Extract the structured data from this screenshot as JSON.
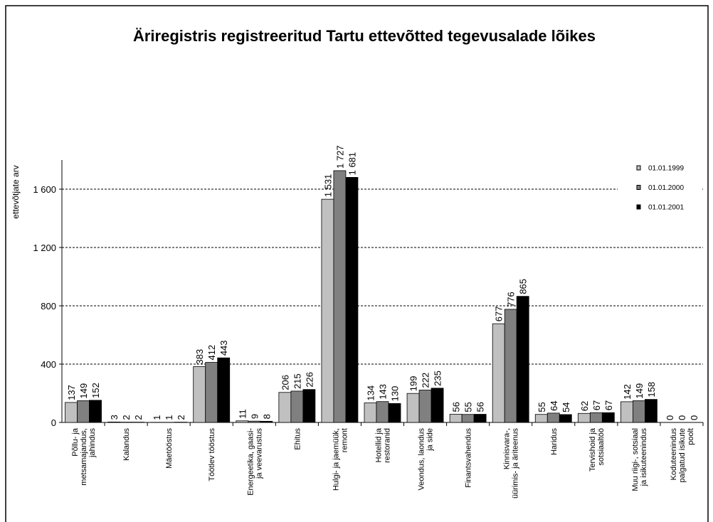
{
  "chart_data": {
    "type": "bar",
    "title": "Äriregistris registreeritud Tartu ettevõtted tegevusalade lõikes",
    "y_label": "ettevõtjate arv",
    "categories": [
      "Põllu- ja\nmetsamajandus,\njahindus",
      "Kalandus",
      "Mäetööstus",
      "Töötlev tööstus",
      "Energeetika, gaasi-\nja veevarustus",
      "Ehitus",
      "Hulgi- ja jaemüük,\nremont",
      "Hotellid ja\nrestoranid",
      "Veondus, laondus\nja side",
      "Finantsvahendus",
      "Kinnisvara-,\nüürimis- ja äriteenus",
      "Haridus",
      "Tervishoid ja\nsotsiaaltöö",
      "Muu riigi-, sotsiaal\nja isikuteenindus",
      "Koduteenindus\npalgatud isikute\npoolt"
    ],
    "series": [
      {
        "name": "01.01.1999",
        "color": "#c0c0c0",
        "values": [
          137,
          3,
          1,
          383,
          11,
          206,
          1531,
          134,
          199,
          56,
          677,
          55,
          62,
          142,
          0
        ],
        "value_labels": [
          "137",
          "3",
          "1",
          "383",
          "11",
          "206",
          "1 531",
          "134",
          "199",
          "56",
          "677",
          "55",
          "62",
          "142",
          "0"
        ]
      },
      {
        "name": "01.01.2000",
        "color": "#808080",
        "values": [
          149,
          2,
          1,
          412,
          9,
          215,
          1727,
          143,
          222,
          55,
          776,
          64,
          67,
          149,
          0
        ],
        "value_labels": [
          "149",
          "2",
          "1",
          "412",
          "9",
          "215",
          "1 727",
          "143",
          "222",
          "55",
          "776",
          "64",
          "67",
          "149",
          "0"
        ]
      },
      {
        "name": "01.01.2001",
        "color": "#000000",
        "values": [
          152,
          2,
          2,
          443,
          8,
          226,
          1681,
          130,
          235,
          56,
          865,
          54,
          67,
          158,
          0
        ],
        "value_labels": [
          "152",
          "2",
          "2",
          "443",
          "8",
          "226",
          "1 681",
          "130",
          "235",
          "56",
          "865",
          "54",
          "67",
          "158",
          "0"
        ]
      }
    ],
    "ylim": [
      0,
      1800
    ],
    "yticks": [
      0,
      400,
      800,
      {
        "value": 1200,
        "label": "1 200"
      },
      {
        "value": 1600,
        "label": "1 600"
      }
    ],
    "grid": true,
    "legend": "top-right"
  }
}
